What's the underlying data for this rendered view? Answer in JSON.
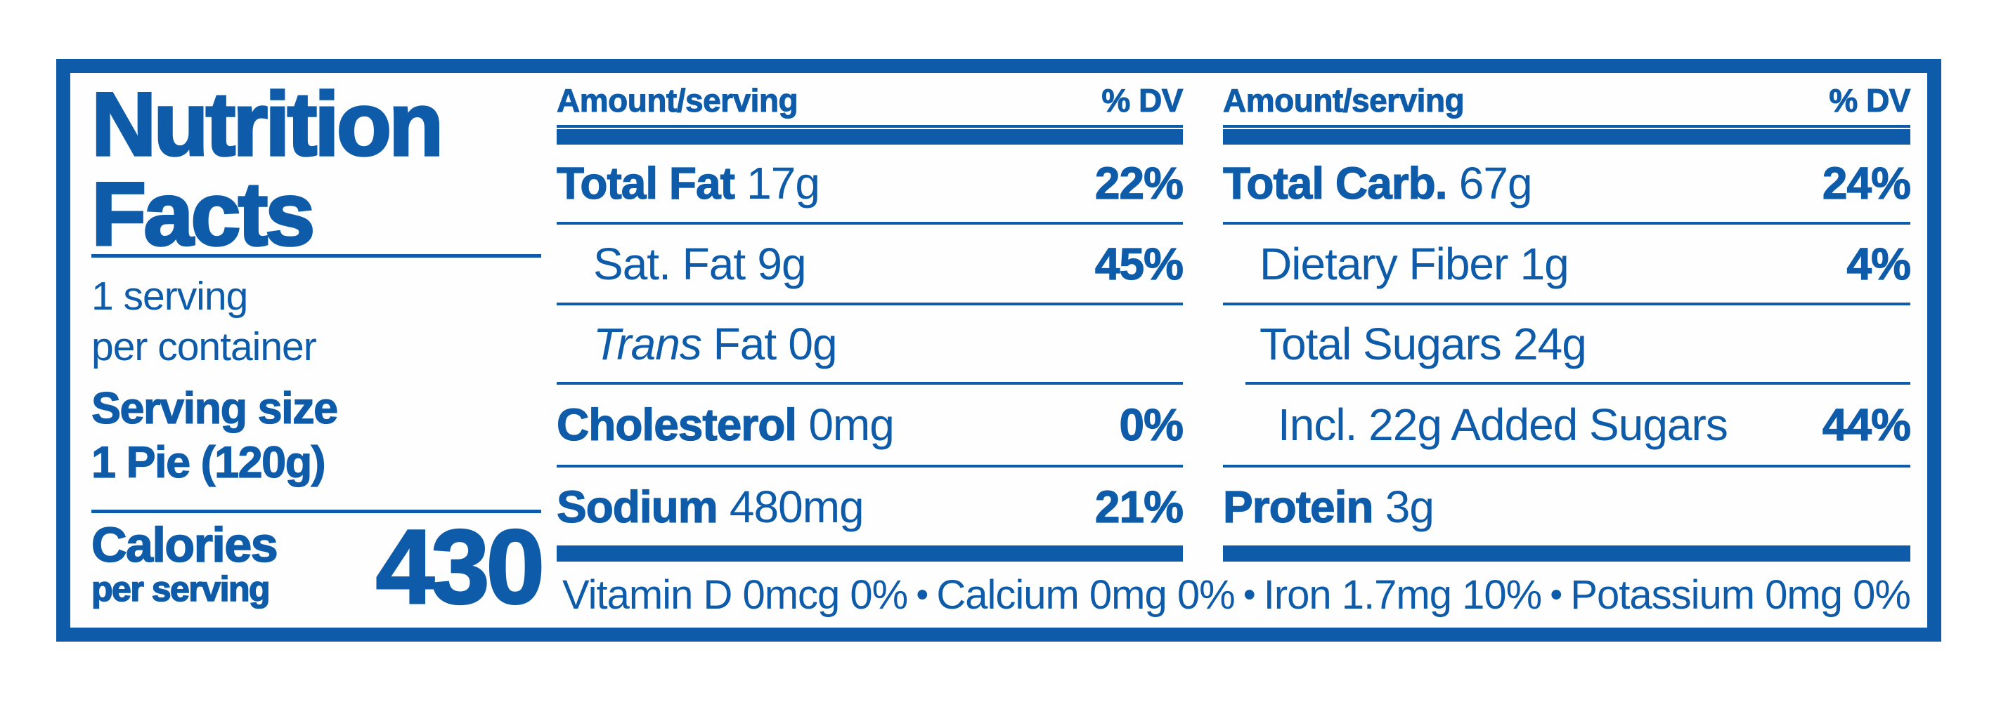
{
  "nutrition_label": {
    "accent_color": "#0E5CA9",
    "title": {
      "line1": "Nutrition",
      "line2": "Facts"
    },
    "serving_info": {
      "servings_line1": "1 serving",
      "servings_line2": "per container",
      "serving_size_label": "Serving size",
      "serving_size_value": "1 Pie (120g)"
    },
    "calories": {
      "label": "Calories",
      "sublabel": "per serving",
      "value": "430"
    },
    "column_header": {
      "amount": "Amount/serving",
      "dv": "% DV"
    },
    "fat_column": {
      "rows": [
        {
          "name": "Total Fat",
          "amount": "17g",
          "dv": "22%"
        },
        {
          "name": "Sat. Fat",
          "amount": "9g",
          "dv": "45%"
        },
        {
          "name": "Trans",
          "suffix": " Fat",
          "amount": "0g",
          "dv": ""
        },
        {
          "name": "Cholesterol",
          "amount": "0mg",
          "dv": "0%"
        },
        {
          "name": "Sodium",
          "amount": "480mg",
          "dv": "21%"
        }
      ]
    },
    "carb_column": {
      "rows": [
        {
          "name": "Total Carb.",
          "amount": "67g",
          "dv": "24%"
        },
        {
          "name": "Dietary Fiber",
          "amount": "1g",
          "dv": "4%"
        },
        {
          "name": "Total Sugars",
          "amount": "24g",
          "dv": ""
        },
        {
          "name": "Incl. 22g Added Sugars",
          "amount": "",
          "dv": "44%"
        },
        {
          "name": "Protein",
          "amount": "3g",
          "dv": ""
        }
      ]
    },
    "micronutrients": {
      "separator": "•",
      "items": [
        "Vitamin D 0mcg 0%",
        "Calcium 0mg 0%",
        "Iron 1.7mg 10%",
        "Potassium 0mg 0%"
      ]
    }
  }
}
